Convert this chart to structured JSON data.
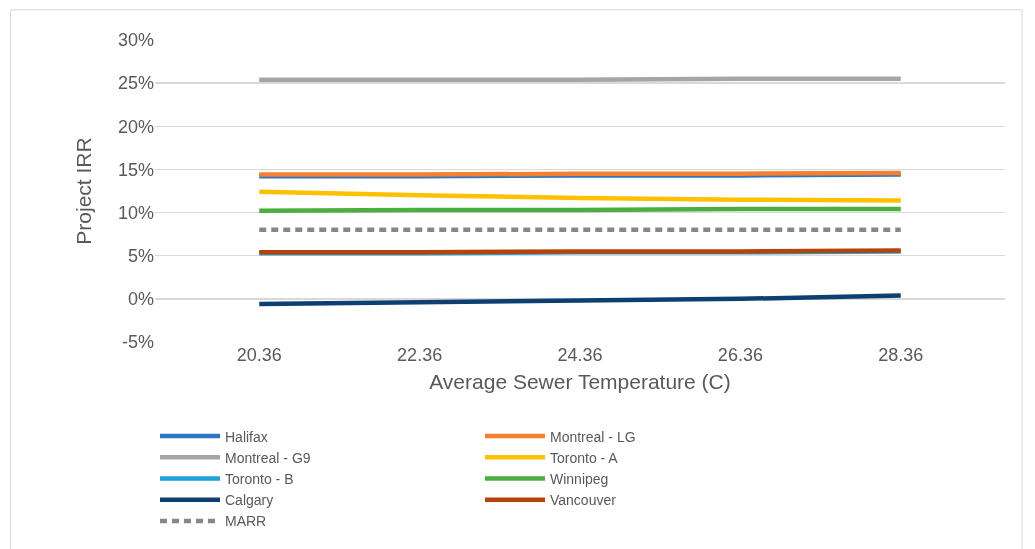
{
  "chart_data": {
    "type": "line",
    "xlabel": "Average Sewer Temperature (C)",
    "ylabel": "Project IRR",
    "categories": [
      "20.36",
      "22.36",
      "24.36",
      "26.36",
      "28.36"
    ],
    "ylim": [
      -5,
      30
    ],
    "yticks": [
      {
        "value": -5,
        "label": "-5%"
      },
      {
        "value": 0,
        "label": "0%"
      },
      {
        "value": 5,
        "label": "5%"
      },
      {
        "value": 10,
        "label": "10%"
      },
      {
        "value": 15,
        "label": "15%"
      },
      {
        "value": 20,
        "label": "20%"
      },
      {
        "value": 25,
        "label": "25%"
      },
      {
        "value": 30,
        "label": "30%"
      }
    ],
    "grid": "y",
    "legend": "bottom",
    "marker": "none",
    "series": [
      {
        "name": "Halifax",
        "color": "#2e75c6",
        "values": [
          14.2,
          14.2,
          14.3,
          14.3,
          14.4
        ]
      },
      {
        "name": "Montreal - LG",
        "color": "#f58030",
        "values": [
          14.4,
          14.4,
          14.5,
          14.5,
          14.6
        ]
      },
      {
        "name": "Montreal - G9",
        "color": "#a5a5a5",
        "values": [
          25.4,
          25.4,
          25.4,
          25.5,
          25.5
        ]
      },
      {
        "name": "Toronto - A",
        "color": "#ffc000",
        "values": [
          12.4,
          12.0,
          11.7,
          11.5,
          11.4
        ]
      },
      {
        "name": "Toronto - B",
        "color": "#21a0db",
        "values": [
          5.3,
          5.3,
          5.4,
          5.4,
          5.5
        ]
      },
      {
        "name": "Winnipeg",
        "color": "#4cae3f",
        "values": [
          10.2,
          10.3,
          10.3,
          10.4,
          10.4
        ]
      },
      {
        "name": "Calgary",
        "color": "#0e3f73",
        "values": [
          -0.6,
          -0.4,
          -0.2,
          0.0,
          0.4
        ]
      },
      {
        "name": "Vancouver",
        "color": "#b5440c",
        "values": [
          5.4,
          5.4,
          5.5,
          5.5,
          5.6
        ]
      },
      {
        "name": "MARR",
        "color": "#878787",
        "line_style": "dashed",
        "values": [
          8.0,
          8.0,
          8.0,
          8.0,
          8.0
        ]
      }
    ]
  }
}
